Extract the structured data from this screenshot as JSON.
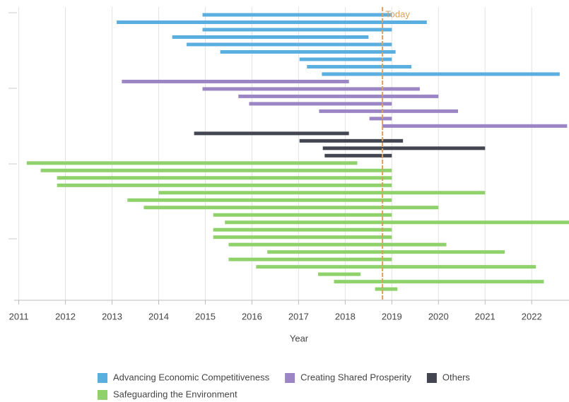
{
  "chart_data": {
    "type": "gantt",
    "xlabel": "Year",
    "xlim": [
      2010.9,
      2022.8
    ],
    "xticks": [
      2011,
      2012,
      2013,
      2014,
      2015,
      2016,
      2017,
      2018,
      2019,
      2020,
      2021,
      2022
    ],
    "grid": true,
    "today": {
      "label": "Today",
      "value": 2018.8,
      "color": "#d9a25a"
    },
    "series": [
      {
        "name": "Advancing Economic Competitiveness",
        "color": "#5aaee0",
        "starts": [
          2014.94,
          2013.1,
          2014.94,
          2014.29,
          2014.6,
          2015.32,
          2017.02,
          2017.18,
          2017.5
        ],
        "ends": [
          2019.0,
          2019.75,
          2019.0,
          2018.5,
          2019.0,
          2019.08,
          2019.0,
          2019.42,
          2022.6
        ]
      },
      {
        "name": "Creating Shared Prosperity",
        "color": "#9b85c4",
        "starts": [
          2013.21,
          2014.94,
          2015.71,
          2015.94,
          2017.44,
          2018.52,
          2018.79
        ],
        "ends": [
          2018.08,
          2019.6,
          2020.0,
          2019.0,
          2020.42,
          2019.0,
          2022.76
        ]
      },
      {
        "name": "Others",
        "color": "#434650",
        "starts": [
          2014.76,
          2017.02,
          2017.52,
          2017.56
        ],
        "ends": [
          2018.08,
          2019.24,
          2021.0,
          2019.0
        ]
      },
      {
        "name": "Safeguarding the Environment",
        "color": "#8fd16a",
        "starts": [
          2011.17,
          2011.47,
          2011.82,
          2011.82,
          2014.0,
          2013.33,
          2013.68,
          2015.17,
          2015.42,
          2015.17,
          2015.17,
          2015.5,
          2016.33,
          2015.5,
          2016.09,
          2017.42,
          2017.76,
          2018.64
        ],
        "ends": [
          2018.26,
          2019.0,
          2019.0,
          2019.0,
          2021.0,
          2019.0,
          2020.0,
          2019.0,
          2022.8,
          2019.0,
          2019.0,
          2020.17,
          2021.42,
          2019.0,
          2022.09,
          2018.33,
          2022.26,
          2019.12
        ]
      }
    ]
  }
}
